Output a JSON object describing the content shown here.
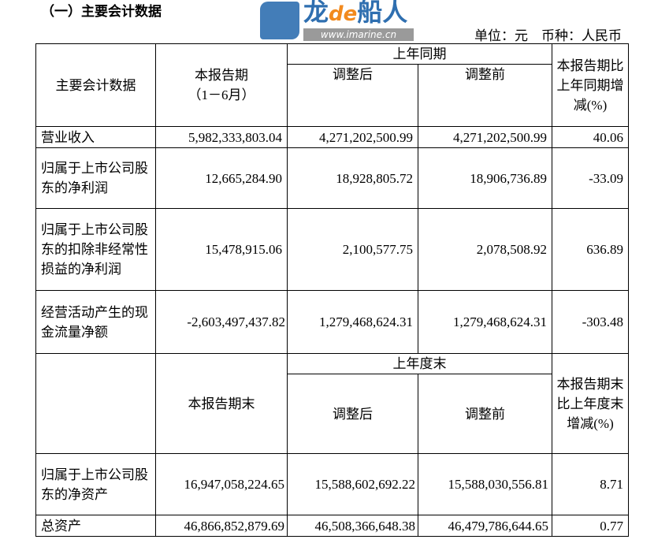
{
  "title": "（一）主要会计数据",
  "unit": "单位：元　币种：人民币",
  "header1": {
    "item": "主要会计数据",
    "current": "本报告期",
    "current_sub": "（1－6月）",
    "prior": "上年同期",
    "adjusted": "调整后",
    "before": "调整前",
    "change": "本报告期比上年同期增减(%)"
  },
  "rows1": [
    {
      "label": "营业收入",
      "current": "5,982,333,803.04",
      "adjusted": "4,271,202,500.99",
      "before": "4,271,202,500.99",
      "change": "40.06"
    },
    {
      "label": "归属于上市公司股东的净利润",
      "current": "12,665,284.90",
      "adjusted": "18,928,805.72",
      "before": "18,906,736.89",
      "change": "-33.09"
    },
    {
      "label": "归属于上市公司股东的扣除非经常性损益的净利润",
      "current": "15,478,915.06",
      "adjusted": "2,100,577.75",
      "before": "2,078,508.92",
      "change": "636.89"
    },
    {
      "label": "经营活动产生的现金流量净额",
      "current": "-2,603,497,437.82",
      "adjusted": "1,279,468,624.31",
      "before": "1,279,468,624.31",
      "change": "-303.48"
    }
  ],
  "header2": {
    "current": "本报告期末",
    "prior": "上年度末",
    "adjusted": "调整后",
    "before": "调整前",
    "change": "本报告期末比上年度末增减(%)"
  },
  "rows2": [
    {
      "label": "归属于上市公司股东的净资产",
      "current": "16,947,058,224.65",
      "adjusted": "15,588,602,692.22",
      "before": "15,588,030,556.81",
      "change": "8.71"
    },
    {
      "label": "总资产",
      "current": "46,866,852,879.69",
      "adjusted": "46,508,366,648.38",
      "before": "46,479,786,644.65",
      "change": "0.77"
    }
  ],
  "watermark": {
    "brand_a": "龙",
    "brand_b": "de",
    "brand_c": "船人",
    "url": "www.imarine.cn",
    "brand_color": "#2f6fb0",
    "accent_color": "#f28a1e"
  }
}
